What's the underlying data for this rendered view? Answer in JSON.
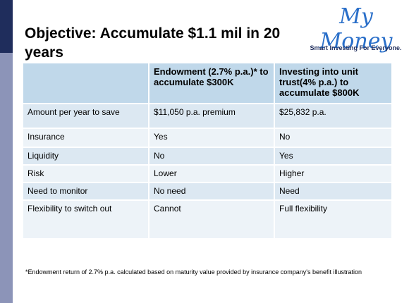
{
  "header": {
    "title": "Objective: Accumulate $1.1 mil in 20 years"
  },
  "logo": {
    "name": "My Money",
    "tagline": "Smart Investing For Everyone."
  },
  "table": {
    "columns": [
      "Endowment (2.7% p.a.)* to accumulate $300K",
      "Investing into unit trust(4% p.a.) to accumulate $800K"
    ],
    "rows": [
      [
        "Amount per year to save",
        "$11,050 p.a. premium",
        "$25,832 p.a."
      ],
      [
        "Insurance",
        "Yes",
        "No"
      ],
      [
        "Liquidity",
        "No",
        "Yes"
      ],
      [
        "Risk",
        "Lower",
        "Higher"
      ],
      [
        "Need to monitor",
        "No need",
        "Need"
      ],
      [
        "Flexibility to switch out",
        "Cannot",
        "Full flexibility"
      ]
    ]
  },
  "footnote": "*Endowment return of 2.7% p.a. calculated based on maturity value provided by insurance company's benefit illustration"
}
